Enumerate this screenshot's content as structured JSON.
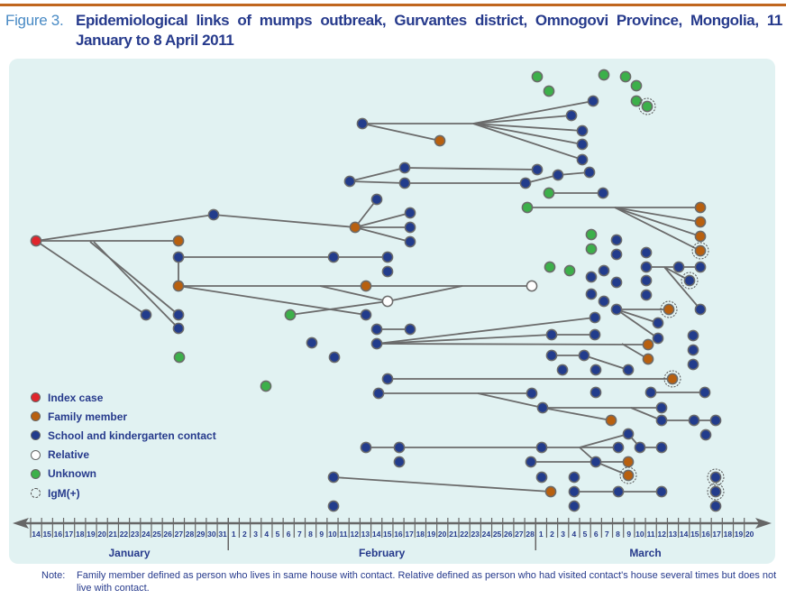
{
  "title": {
    "figure_label": "Figure 3.",
    "text": "Epidemiological links of mumps outbreak, Gurvantes district, Omnogovi Province, Mongolia, 11 January to 8 April 2011"
  },
  "legend": [
    {
      "key": "i",
      "label": "Index case",
      "color": "#e0252c"
    },
    {
      "key": "f",
      "label": "Family member",
      "color": "#b8600f"
    },
    {
      "key": "s",
      "label": "School and kindergarten contact",
      "color": "#223c8c"
    },
    {
      "key": "r",
      "label": "Relative",
      "color": "#ffffff"
    },
    {
      "key": "u",
      "label": "Unknown",
      "color": "#3cb04a"
    },
    {
      "key": "g",
      "label": "IgM(+)",
      "color": "none"
    }
  ],
  "axis": {
    "months": [
      {
        "name": "January",
        "days": [
          "14",
          "15",
          "16",
          "17",
          "18",
          "19",
          "20",
          "21",
          "22",
          "23",
          "24",
          "25",
          "26",
          "27",
          "28",
          "29",
          "30",
          "31"
        ]
      },
      {
        "name": "February",
        "days": [
          "1",
          "2",
          "3",
          "4",
          "5",
          "6",
          "7",
          "8",
          "9",
          "10",
          "11",
          "12",
          "13",
          "14",
          "15",
          "16",
          "17",
          "18",
          "19",
          "20",
          "21",
          "22",
          "23",
          "24",
          "25",
          "26",
          "27",
          "28"
        ]
      },
      {
        "name": "March",
        "days": [
          "1",
          "2",
          "3",
          "4",
          "5",
          "6",
          "7",
          "8",
          "9",
          "10",
          "11",
          "12",
          "13",
          "14",
          "15",
          "16",
          "17",
          "18",
          "19",
          "20"
        ]
      }
    ]
  },
  "note": {
    "label": "Note:",
    "text": "Family member defined as person who lives in same house with contact. Relative defined as person who had visited contact's house several times but does not live with contact."
  }
}
